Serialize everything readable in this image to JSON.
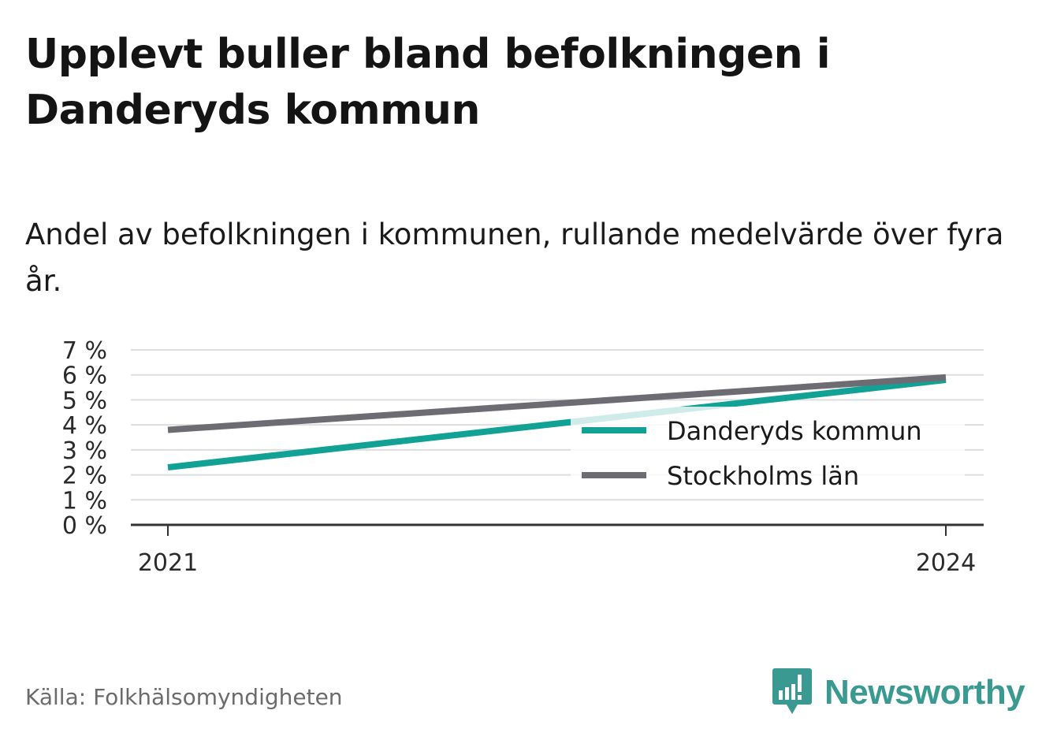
{
  "title": "Upplevt buller bland befolkningen i Danderyds kommun",
  "subtitle": "Andel av befolkningen i kommunen, rullande medelvärde över fyra år.",
  "source": "Källa: Folkhälsomyndigheten",
  "brand": {
    "name": "Newsworthy",
    "icon": "newsworthy-logo-icon",
    "color": "#3a9a91"
  },
  "chart_data": {
    "type": "line",
    "x": [
      "2021",
      "2024"
    ],
    "series": [
      {
        "name": "Danderyds kommun",
        "values": [
          2.3,
          5.8
        ],
        "color": "#12a295"
      },
      {
        "name": "Stockholms län",
        "values": [
          3.8,
          5.9
        ],
        "color": "#6d6c72"
      }
    ],
    "ylim": [
      0,
      7
    ],
    "yticks": [
      "0 %",
      "1 %",
      "2 %",
      "3 %",
      "4 %",
      "5 %",
      "6 %",
      "7 %"
    ],
    "xticks": [
      "2021",
      "2024"
    ],
    "grid": true,
    "legend": "right"
  }
}
